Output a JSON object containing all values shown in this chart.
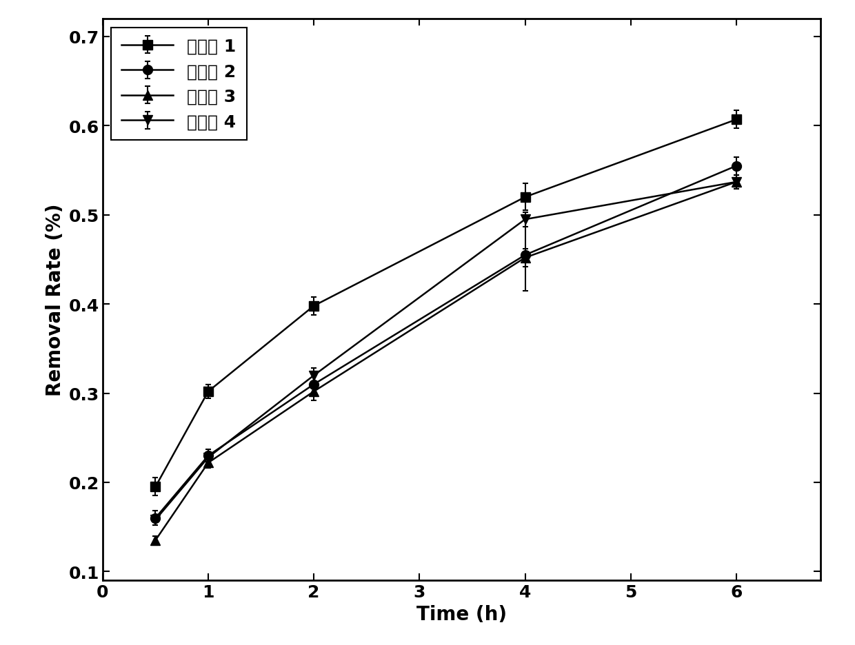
{
  "title": "",
  "xlabel": "Time (h)",
  "ylabel": "Removal Rate (%)",
  "xlim": [
    0,
    6.8
  ],
  "ylim": [
    0.09,
    0.72
  ],
  "xticks": [
    0,
    1,
    2,
    3,
    4,
    5,
    6
  ],
  "yticks": [
    0.1,
    0.2,
    0.3,
    0.4,
    0.5,
    0.6,
    0.7
  ],
  "series": [
    {
      "label": "实验组 1",
      "x": [
        0.5,
        1.0,
        2.0,
        4.0,
        6.0
      ],
      "y": [
        0.195,
        0.302,
        0.398,
        0.52,
        0.607
      ],
      "yerr": [
        0.01,
        0.008,
        0.01,
        0.015,
        0.01
      ],
      "marker": "s",
      "color": "black",
      "linestyle": "-"
    },
    {
      "label": "实验组 2",
      "x": [
        0.5,
        1.0,
        2.0,
        4.0,
        6.0
      ],
      "y": [
        0.16,
        0.23,
        0.31,
        0.455,
        0.555
      ],
      "yerr": [
        0.008,
        0.007,
        0.012,
        0.04,
        0.01
      ],
      "marker": "o",
      "color": "black",
      "linestyle": "-"
    },
    {
      "label": "实验组 3",
      "x": [
        0.5,
        1.0,
        2.0,
        4.0,
        6.0
      ],
      "y": [
        0.135,
        0.222,
        0.302,
        0.452,
        0.537
      ],
      "yerr": [
        0.005,
        0.006,
        0.01,
        0.01,
        0.008
      ],
      "marker": "^",
      "color": "black",
      "linestyle": "-"
    },
    {
      "label": "实验组 4",
      "x": [
        0.5,
        1.0,
        2.0,
        4.0,
        6.0
      ],
      "y": [
        0.158,
        0.228,
        0.32,
        0.495,
        0.537
      ],
      "yerr": [
        0.006,
        0.006,
        0.008,
        0.008,
        0.008
      ],
      "marker": "v",
      "color": "black",
      "linestyle": "-"
    }
  ],
  "legend_loc": "upper left",
  "legend_fontsize": 18,
  "axis_fontsize": 20,
  "tick_fontsize": 18,
  "linewidth": 1.8,
  "markersize": 10,
  "background_color": "#ffffff"
}
